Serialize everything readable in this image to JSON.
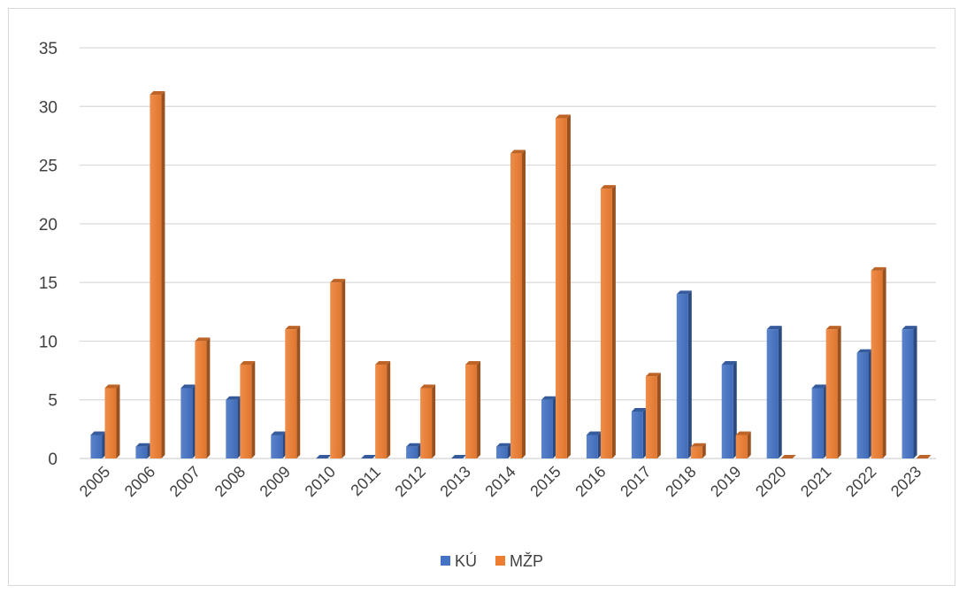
{
  "chart_data": {
    "type": "bar",
    "categories": [
      "2005",
      "2006",
      "2007",
      "2008",
      "2009",
      "2010",
      "2011",
      "2012",
      "2013",
      "2014",
      "2015",
      "2016",
      "2017",
      "2018",
      "2019",
      "2020",
      "2021",
      "2022",
      "2023"
    ],
    "series": [
      {
        "name": "KÚ",
        "color": "#4472c4",
        "values": [
          2,
          1,
          6,
          5,
          2,
          0,
          0,
          1,
          0,
          1,
          5,
          2,
          4,
          14,
          8,
          11,
          6,
          9,
          11
        ]
      },
      {
        "name": "MŽP",
        "color": "#ed7d31",
        "values": [
          6,
          31,
          10,
          8,
          11,
          15,
          8,
          6,
          8,
          26,
          29,
          23,
          7,
          1,
          2,
          0,
          11,
          16,
          0
        ]
      }
    ],
    "y_ticks": [
      "0",
      "5",
      "10",
      "15",
      "20",
      "25",
      "30",
      "35"
    ],
    "ylim": [
      0,
      35
    ],
    "grid": true,
    "legend_position": "bottom"
  }
}
